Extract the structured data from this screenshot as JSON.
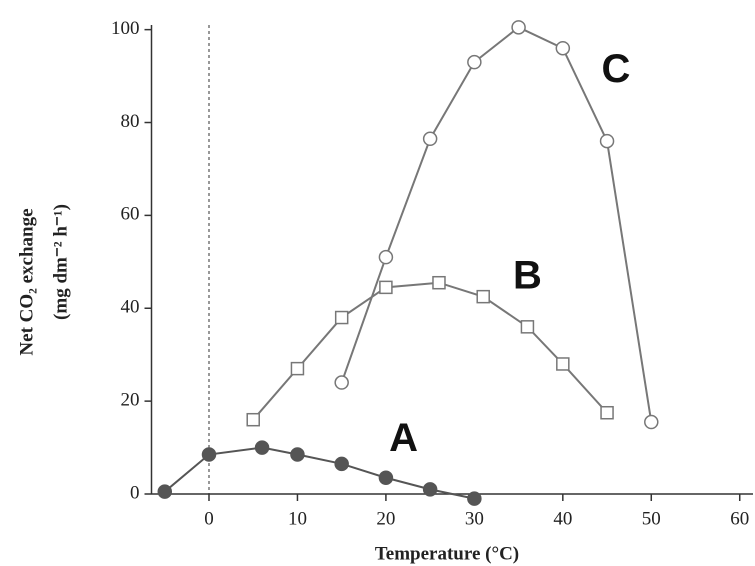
{
  "chart_data": {
    "type": "line",
    "x_label": "Temperature (°C)",
    "y_label": [
      "Net CO₂ exchange",
      "(mg dm⁻² h⁻¹)"
    ],
    "xlim": [
      -6.5,
      61.5
    ],
    "xticks": [
      0,
      10,
      20,
      30,
      40,
      50,
      60
    ],
    "ylim": [
      0,
      101
    ],
    "yticks": [
      0,
      20,
      40,
      60,
      80,
      100
    ],
    "vline": 0,
    "series": [
      {
        "name": "A",
        "color": "#555555",
        "marker": "circle-filled",
        "x": [
          -5,
          0,
          6,
          10,
          15,
          20,
          25,
          30
        ],
        "values": [
          0.5,
          8.5,
          10,
          8.5,
          6.5,
          3.5,
          1,
          -1
        ],
        "label_at": [
          22,
          11.5
        ]
      },
      {
        "name": "B",
        "color": "#777777",
        "marker": "square",
        "x": [
          5,
          10,
          15,
          20,
          26,
          31,
          36,
          40,
          45
        ],
        "values": [
          16,
          27,
          38,
          44.5,
          45.5,
          42.5,
          36,
          28,
          17.5
        ],
        "label_at": [
          36,
          46.5
        ]
      },
      {
        "name": "C",
        "color": "#777777",
        "marker": "circle",
        "x": [
          15,
          20,
          25,
          30,
          35,
          40,
          45,
          50
        ],
        "values": [
          24,
          51,
          76.5,
          93,
          100.5,
          96,
          76,
          15.5
        ],
        "label_at": [
          46,
          91
        ]
      }
    ]
  }
}
